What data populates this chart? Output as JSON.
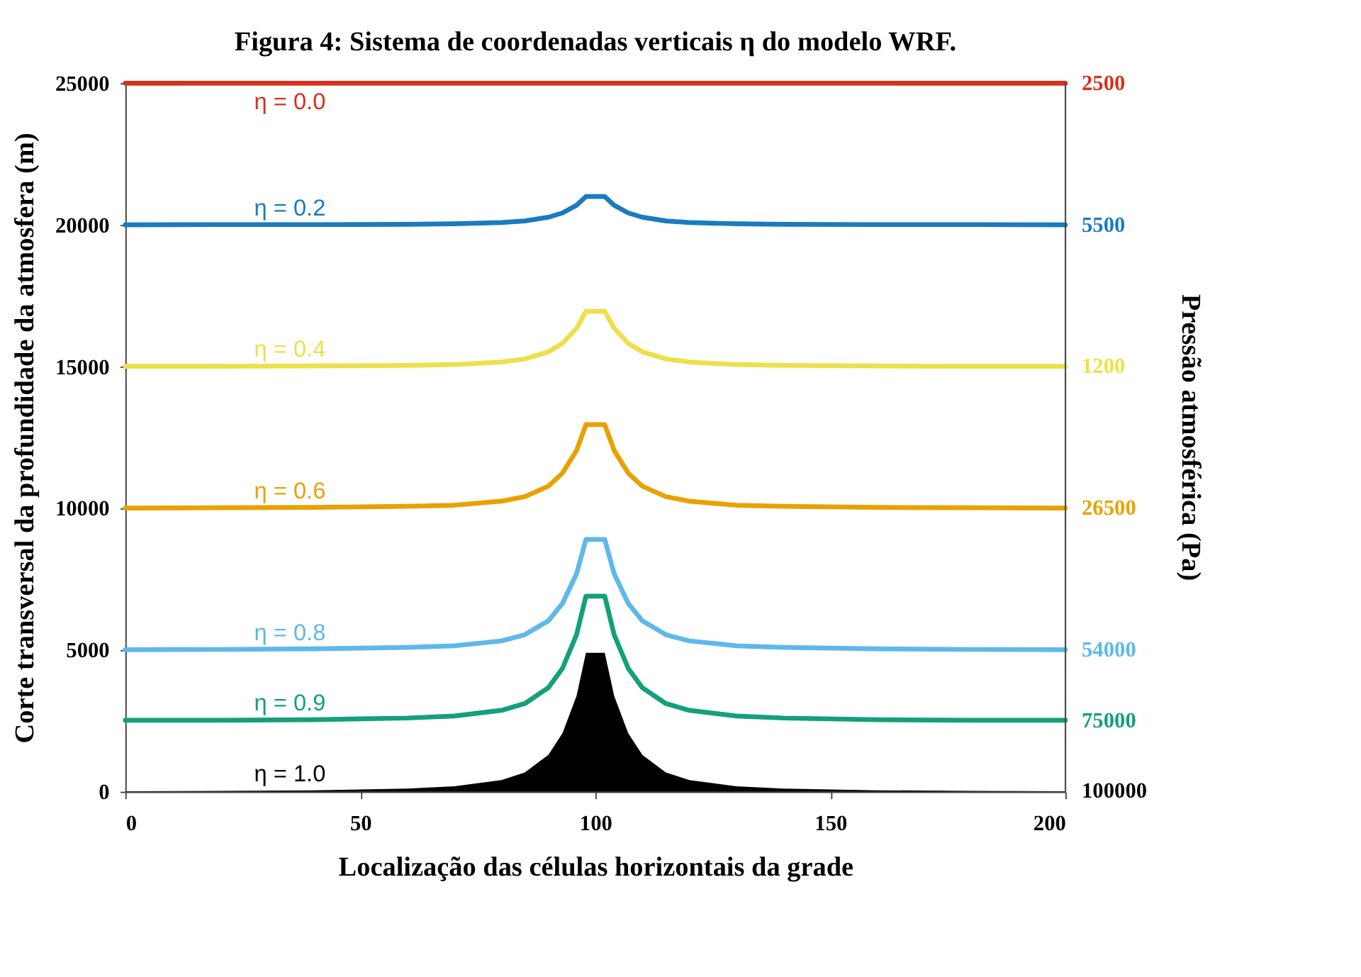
{
  "chart_data": {
    "type": "line",
    "title": "Figura 4: Sistema de coordenadas verticais η do modelo WRF.",
    "xlabel": "Localização das células horizontais da grade",
    "ylabel": "Corte transversal da profundidade da atmosfera (m)",
    "y2label": "Pressão atmosférica (Pa)",
    "xlim": [
      0,
      200
    ],
    "xticks": [
      0,
      50,
      100,
      150,
      200
    ],
    "ylim": [
      0,
      25000
    ],
    "yticks": [
      0,
      5000,
      10000,
      15000,
      20000,
      25000
    ],
    "annotations": [
      "2500",
      "5500",
      "1200",
      "26500",
      "54000",
      "75000",
      "100000"
    ],
    "grid": false,
    "marker": "none",
    "line_style": "solid",
    "series": [
      {
        "name": "η = 0.0",
        "color": "#d7301f",
        "x": [
          0,
          200
        ],
        "values": [
          25000,
          25000
        ]
      },
      {
        "name": "η = 0.2",
        "color": "#1a7bbf",
        "x": [
          0,
          20,
          40,
          60,
          70,
          80,
          85,
          90,
          93,
          96,
          98,
          100,
          102,
          104,
          107,
          110,
          115,
          120,
          130,
          140,
          160,
          180,
          200
        ],
        "values": [
          20000,
          20010,
          20010,
          20020,
          20040,
          20080,
          20140,
          20270,
          20420,
          20690,
          21000,
          21000,
          21000,
          20690,
          20420,
          20270,
          20140,
          20080,
          20040,
          20020,
          20010,
          20010,
          20000
        ]
      },
      {
        "name": "η = 0.4",
        "color": "#ede04c",
        "x": [
          0,
          20,
          40,
          60,
          70,
          80,
          85,
          90,
          93,
          96,
          98,
          100,
          102,
          104,
          107,
          110,
          115,
          120,
          130,
          140,
          160,
          180,
          200
        ],
        "values": [
          15010,
          15010,
          15020,
          15040,
          15070,
          15160,
          15270,
          15520,
          15820,
          16350,
          16950,
          16950,
          16950,
          16350,
          15820,
          15520,
          15270,
          15160,
          15070,
          15040,
          15020,
          15010,
          15010
        ]
      },
      {
        "name": "η = 0.6",
        "color": "#e8a200",
        "x": [
          0,
          20,
          40,
          60,
          70,
          80,
          85,
          90,
          93,
          96,
          98,
          100,
          102,
          104,
          107,
          110,
          115,
          120,
          130,
          140,
          160,
          180,
          200
        ],
        "values": [
          10010,
          10020,
          10030,
          10070,
          10110,
          10250,
          10410,
          10780,
          11240,
          12040,
          12950,
          12950,
          12950,
          12040,
          11240,
          10780,
          10410,
          10250,
          10110,
          10070,
          10030,
          10020,
          10010
        ]
      },
      {
        "name": "η = 0.8",
        "color": "#5fb8ea",
        "x": [
          0,
          20,
          40,
          60,
          70,
          80,
          85,
          90,
          93,
          96,
          98,
          100,
          102,
          104,
          107,
          110,
          115,
          120,
          130,
          140,
          160,
          180,
          200
        ],
        "values": [
          5010,
          5020,
          5040,
          5090,
          5150,
          5320,
          5540,
          6030,
          6640,
          7690,
          8900,
          8900,
          8900,
          7690,
          6640,
          6030,
          5540,
          5320,
          5150,
          5090,
          5040,
          5020,
          5010
        ]
      },
      {
        "name": "η = 0.9",
        "color": "#14a07a",
        "x": [
          0,
          20,
          40,
          60,
          70,
          80,
          85,
          90,
          93,
          96,
          98,
          100,
          102,
          104,
          107,
          110,
          115,
          120,
          130,
          140,
          160,
          180,
          200
        ],
        "values": [
          2520,
          2520,
          2540,
          2600,
          2670,
          2870,
          3110,
          3670,
          4350,
          5540,
          6900,
          6900,
          6900,
          5540,
          4350,
          3670,
          3110,
          2870,
          2670,
          2600,
          2540,
          2520,
          2520
        ]
      },
      {
        "name": "η = 1.0",
        "type": "area",
        "color": "#000000",
        "x": [
          0,
          20,
          40,
          60,
          70,
          80,
          85,
          90,
          93,
          96,
          98,
          100,
          102,
          104,
          107,
          110,
          115,
          120,
          130,
          140,
          160,
          180,
          200
        ],
        "values": [
          20,
          30,
          50,
          110,
          190,
          410,
          680,
          1300,
          2060,
          3380,
          4900,
          4900,
          4900,
          3380,
          2060,
          1300,
          680,
          410,
          190,
          110,
          50,
          30,
          20
        ]
      }
    ]
  }
}
